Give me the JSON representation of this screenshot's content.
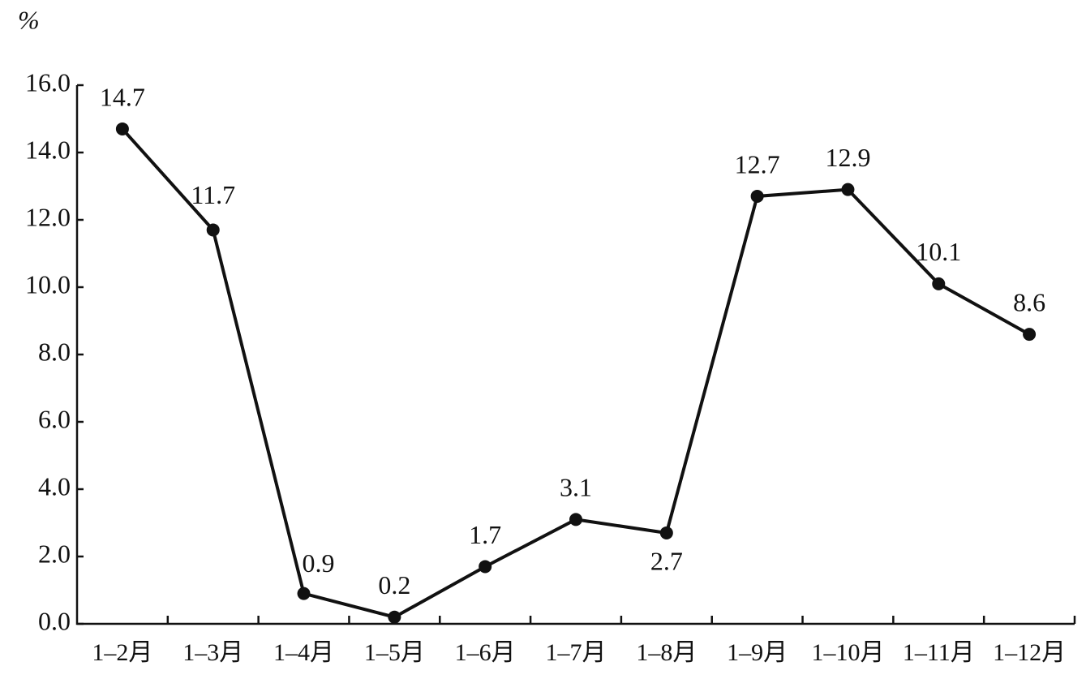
{
  "chart_data": {
    "type": "line",
    "y_label": "%",
    "categories": [
      "1–2月",
      "1–3月",
      "1–4月",
      "1–5月",
      "1–6月",
      "1–7月",
      "1–8月",
      "1–9月",
      "1–10月",
      "1–11月",
      "1–12月"
    ],
    "values": [
      14.7,
      11.7,
      0.9,
      0.2,
      1.7,
      3.1,
      2.7,
      12.7,
      12.9,
      10.1,
      8.6
    ],
    "color": "#111111",
    "ylim": [
      0,
      16
    ],
    "yticks": [
      {
        "value": 0,
        "label": "0.0"
      },
      {
        "value": 2,
        "label": "2.0"
      },
      {
        "value": 4,
        "label": "4.0"
      },
      {
        "value": 6,
        "label": "6.0"
      },
      {
        "value": 8,
        "label": "8.0"
      },
      {
        "value": 10,
        "label": "10.0"
      },
      {
        "value": 12,
        "label": "12.0"
      },
      {
        "value": 14,
        "label": "14.0"
      },
      {
        "value": 16,
        "label": "16.0"
      }
    ],
    "grid": false
  }
}
